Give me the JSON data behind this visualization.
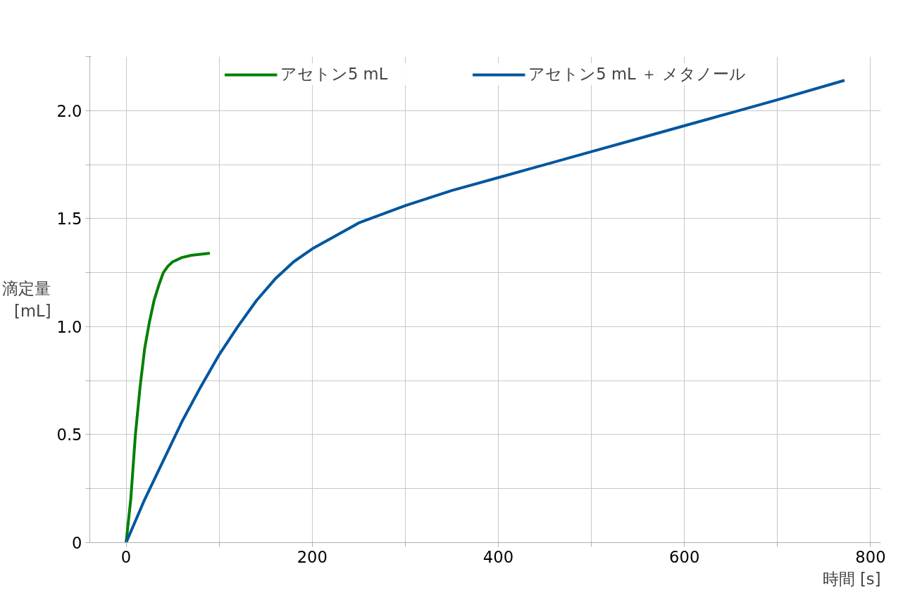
{
  "chart_data": {
    "type": "line",
    "xlabel": "時間 [s]",
    "ylabel": "滴定量 [mL]",
    "xlim": [
      -39,
      811
    ],
    "ylim": [
      0,
      2.25
    ],
    "xticks": [
      0,
      {
        "value": 100,
        "label": null
      },
      200,
      {
        "value": 300,
        "label": null
      },
      400,
      {
        "value": 500,
        "label": null
      },
      600,
      {
        "value": 700,
        "label": null
      },
      800
    ],
    "yticks": [
      0,
      {
        "value": 0.25,
        "label": null
      },
      0.5,
      {
        "value": 0.75,
        "label": null
      },
      {
        "value": 1,
        "label": "1.0"
      },
      {
        "value": 1.25,
        "label": null
      },
      1.5,
      {
        "value": 1.75,
        "label": null
      },
      {
        "value": 2,
        "label": "2.0"
      },
      {
        "value": 2.25,
        "label": null
      }
    ],
    "grid": true,
    "legend": "top",
    "line_style": "solid",
    "series": [
      {
        "name": "アセトン5 mL",
        "color": "#008000",
        "x": [
          0,
          5,
          10,
          15,
          20,
          25,
          30,
          35,
          40,
          45,
          50,
          60,
          70,
          90
        ],
        "values": [
          0,
          0.2,
          0.5,
          0.72,
          0.9,
          1.02,
          1.12,
          1.19,
          1.25,
          1.28,
          1.3,
          1.32,
          1.33,
          1.34
        ]
      },
      {
        "name": "アセトン5 mL ＋ メタノール",
        "color": "#00569f",
        "x": [
          0,
          10,
          20,
          40,
          60,
          80,
          100,
          120,
          140,
          160,
          180,
          200,
          250,
          300,
          350,
          400,
          450,
          500,
          550,
          600,
          650,
          700,
          772
        ],
        "values": [
          0,
          0.1,
          0.2,
          0.38,
          0.56,
          0.72,
          0.87,
          1.0,
          1.12,
          1.22,
          1.3,
          1.36,
          1.48,
          1.56,
          1.63,
          1.69,
          1.75,
          1.81,
          1.87,
          1.93,
          1.99,
          2.05,
          2.14
        ]
      }
    ]
  }
}
